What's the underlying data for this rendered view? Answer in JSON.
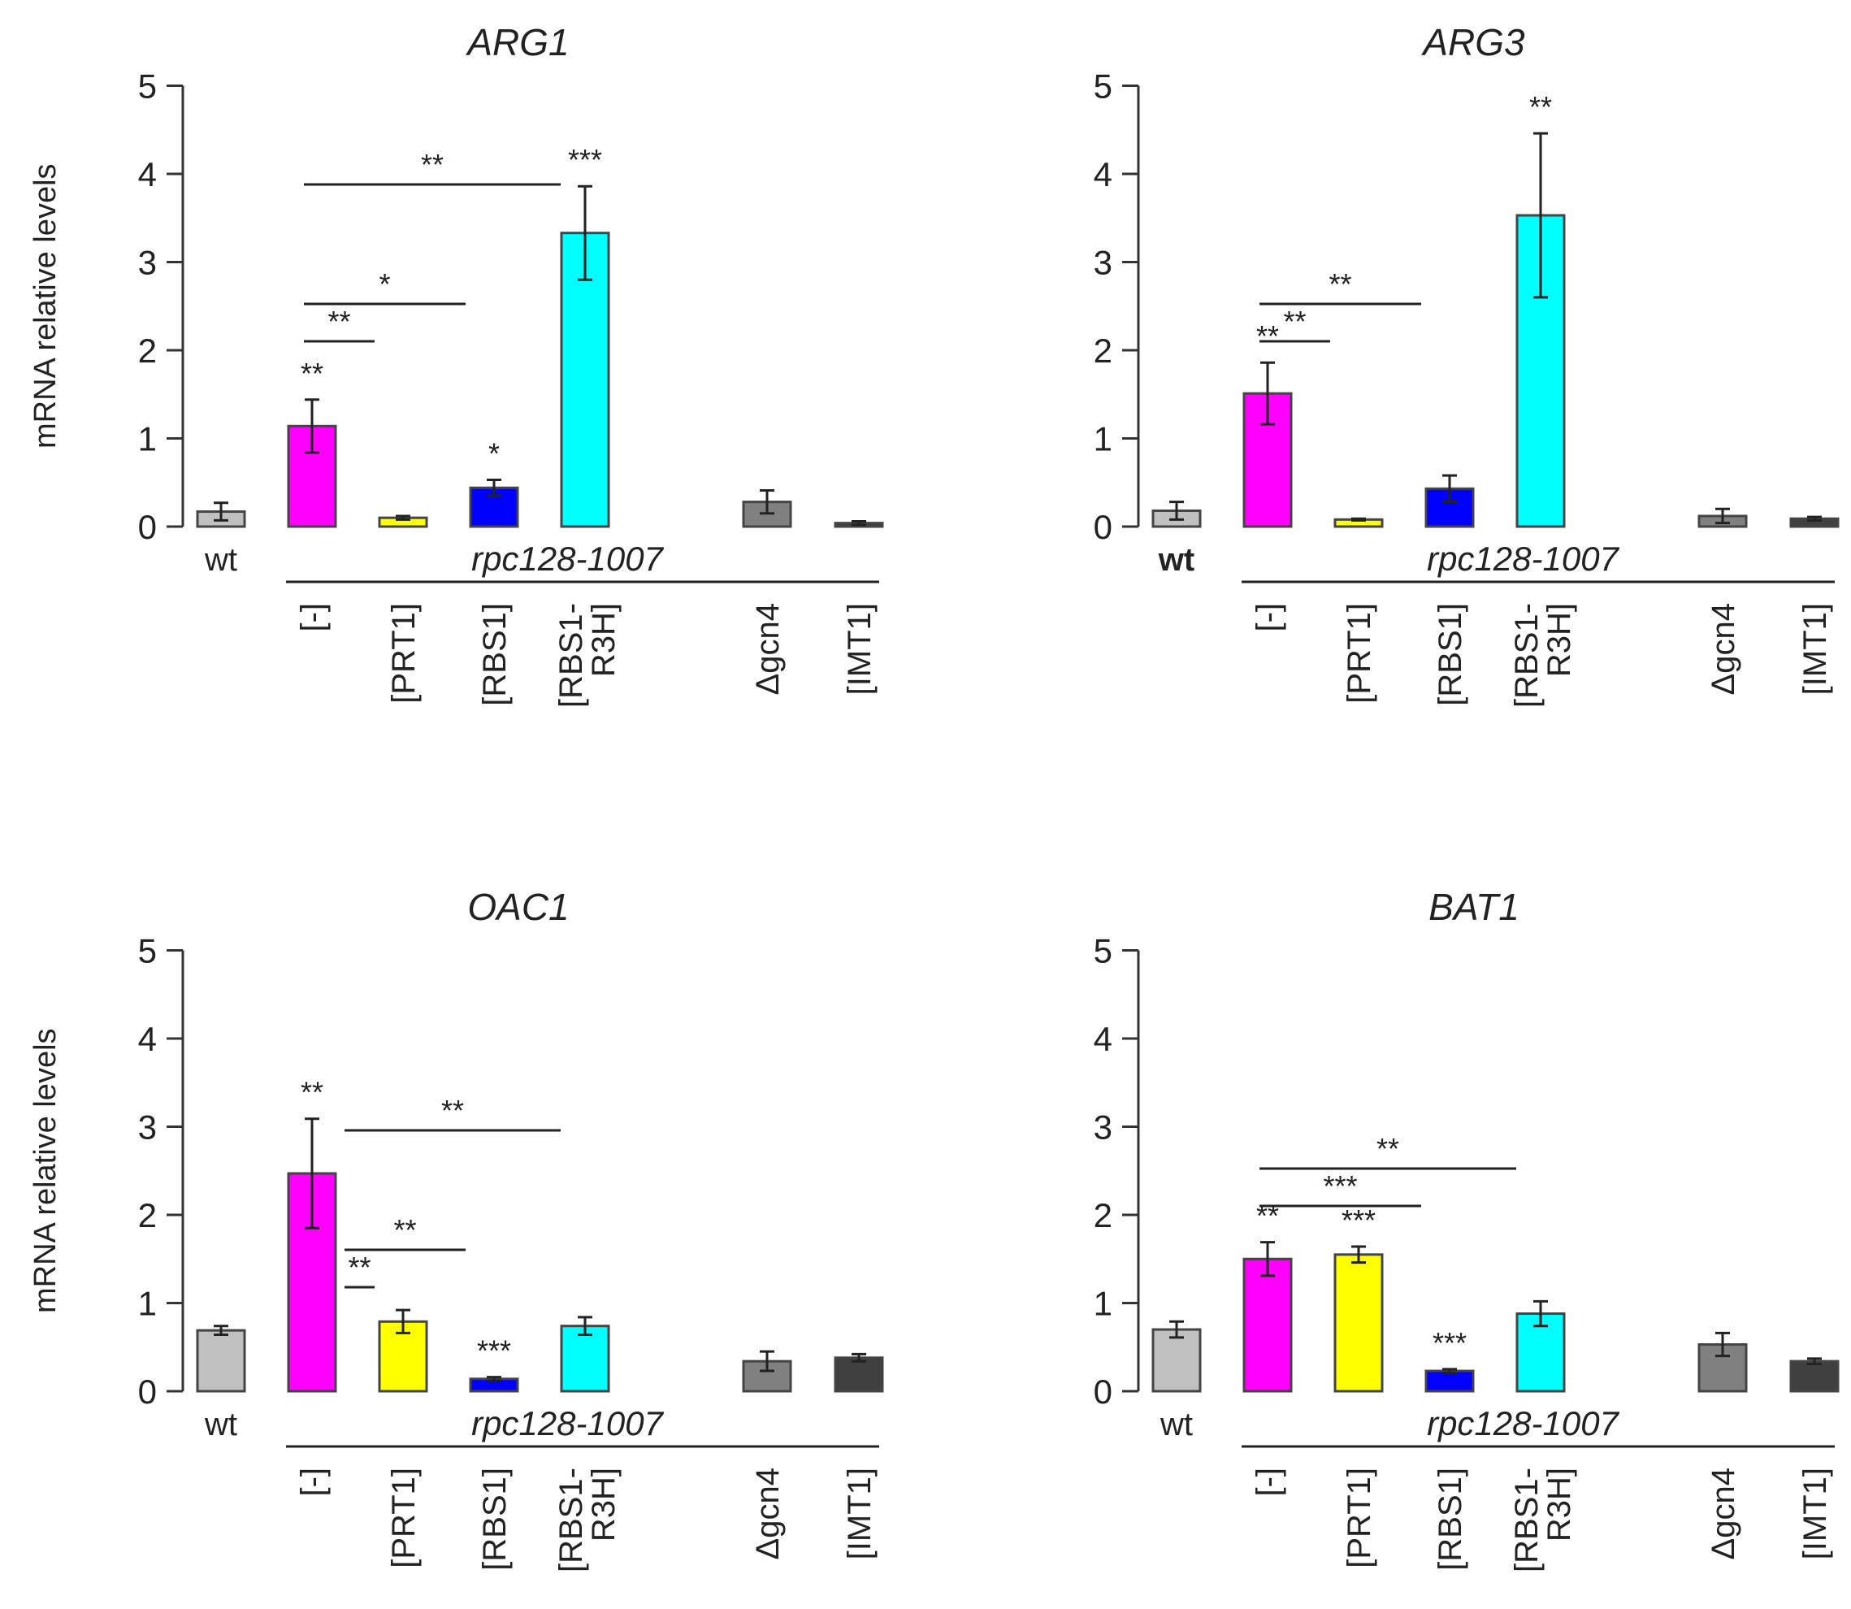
{
  "chart_data": [
    {
      "type": "bar",
      "title": "ARG1",
      "ylabel": "mRNA relative levels",
      "ylim": [
        0,
        5
      ],
      "yticks": [
        "0",
        "1",
        "2",
        "3",
        "4",
        "5"
      ],
      "group_label": "rpc128-1007",
      "categories": [
        [
          "wt"
        ],
        [
          "[-]"
        ],
        [
          "[PRT1]"
        ],
        [
          "[RBS1]"
        ],
        [
          "[RBS1-",
          "R3H]"
        ],
        [
          "Δgcn4"
        ],
        [
          "[IMT1]"
        ]
      ],
      "values": [
        0.17,
        1.14,
        0.1,
        0.44,
        3.33,
        0.28,
        0.04
      ],
      "errors": [
        0.1,
        0.3,
        0.02,
        0.09,
        0.53,
        0.13,
        0.02
      ],
      "colors": [
        "#c0c0c0",
        "#ff00ff",
        "#ffff00",
        "#0000ff",
        "#00ffff",
        "#808080",
        "#404040"
      ],
      "bar_labels": [
        "",
        "**",
        "",
        "*",
        "***",
        "",
        ""
      ],
      "comparisons": [
        {
          "from": 1,
          "to": 4,
          "label": "**"
        },
        {
          "from": 1,
          "to": 3,
          "label": "*"
        },
        {
          "from": 1,
          "to": 2,
          "label": "**"
        }
      ]
    },
    {
      "type": "bar",
      "title": "ARG3",
      "ylabel": "",
      "ylim": [
        0,
        5
      ],
      "yticks": [
        "0",
        "1",
        "2",
        "3",
        "4",
        "5"
      ],
      "group_label": "rpc128-1007",
      "categories": [
        [
          "wt"
        ],
        [
          "[-]"
        ],
        [
          "[PRT1]"
        ],
        [
          "[RBS1]"
        ],
        [
          "[RBS1-",
          "R3H]"
        ],
        [
          "Δgcn4"
        ],
        [
          "[IMT1]"
        ]
      ],
      "values": [
        0.18,
        1.51,
        0.08,
        0.43,
        3.53,
        0.12,
        0.09
      ],
      "errors": [
        0.1,
        0.35,
        0.01,
        0.15,
        0.93,
        0.08,
        0.02
      ],
      "colors": [
        "#c0c0c0",
        "#ff00ff",
        "#ffff00",
        "#0000ff",
        "#00ffff",
        "#808080",
        "#404040"
      ],
      "bar_labels": [
        "",
        "**",
        "",
        "",
        "**",
        "",
        ""
      ],
      "comparisons": [
        {
          "from": 1,
          "to": 3,
          "label": "**"
        },
        {
          "from": 1,
          "to": 2,
          "label": "**"
        }
      ]
    },
    {
      "type": "bar",
      "title": "OAC1",
      "ylabel": "mRNA relative levels",
      "ylim": [
        0,
        5
      ],
      "yticks": [
        "0",
        "1",
        "2",
        "3",
        "4",
        "5"
      ],
      "group_label": "rpc128-1007",
      "categories": [
        [
          "wt"
        ],
        [
          "[-]"
        ],
        [
          "[PRT1]"
        ],
        [
          "[RBS1]"
        ],
        [
          "[RBS1-",
          "R3H]"
        ],
        [
          "Δgcn4"
        ],
        [
          "[IMT1]"
        ]
      ],
      "values": [
        0.69,
        2.47,
        0.79,
        0.14,
        0.74,
        0.34,
        0.38
      ],
      "errors": [
        0.05,
        0.62,
        0.13,
        0.02,
        0.1,
        0.11,
        0.04
      ],
      "colors": [
        "#c0c0c0",
        "#ff00ff",
        "#ffff00",
        "#0000ff",
        "#00ffff",
        "#808080",
        "#404040"
      ],
      "bar_labels": [
        "",
        "**",
        "",
        "***",
        "",
        "",
        ""
      ],
      "comparisons": [
        {
          "from": 1,
          "to": 4,
          "label": "**"
        },
        {
          "from": 1,
          "to": 3,
          "label": "**"
        },
        {
          "from": 1,
          "to": 2,
          "label": "**"
        }
      ]
    },
    {
      "type": "bar",
      "title": "BAT1",
      "ylabel": "",
      "ylim": [
        0,
        5
      ],
      "yticks": [
        "0",
        "1",
        "2",
        "3",
        "4",
        "5"
      ],
      "group_label": "rpc128-1007",
      "categories": [
        [
          "wt"
        ],
        [
          "[-]"
        ],
        [
          "[PRT1]"
        ],
        [
          "[RBS1]"
        ],
        [
          "[RBS1-",
          "R3H]"
        ],
        [
          "Δgcn4"
        ],
        [
          "[IMT1]"
        ]
      ],
      "values": [
        0.7,
        1.5,
        1.55,
        0.23,
        0.88,
        0.53,
        0.34
      ],
      "errors": [
        0.09,
        0.19,
        0.09,
        0.02,
        0.14,
        0.13,
        0.03
      ],
      "colors": [
        "#c0c0c0",
        "#ff00ff",
        "#ffff00",
        "#0000ff",
        "#00ffff",
        "#808080",
        "#404040"
      ],
      "bar_labels": [
        "",
        "**",
        "***",
        "***",
        "",
        "",
        ""
      ],
      "comparisons": [
        {
          "from": 1,
          "to": 4,
          "label": "**"
        },
        {
          "from": 1,
          "to": 3,
          "label": "***"
        }
      ]
    }
  ]
}
